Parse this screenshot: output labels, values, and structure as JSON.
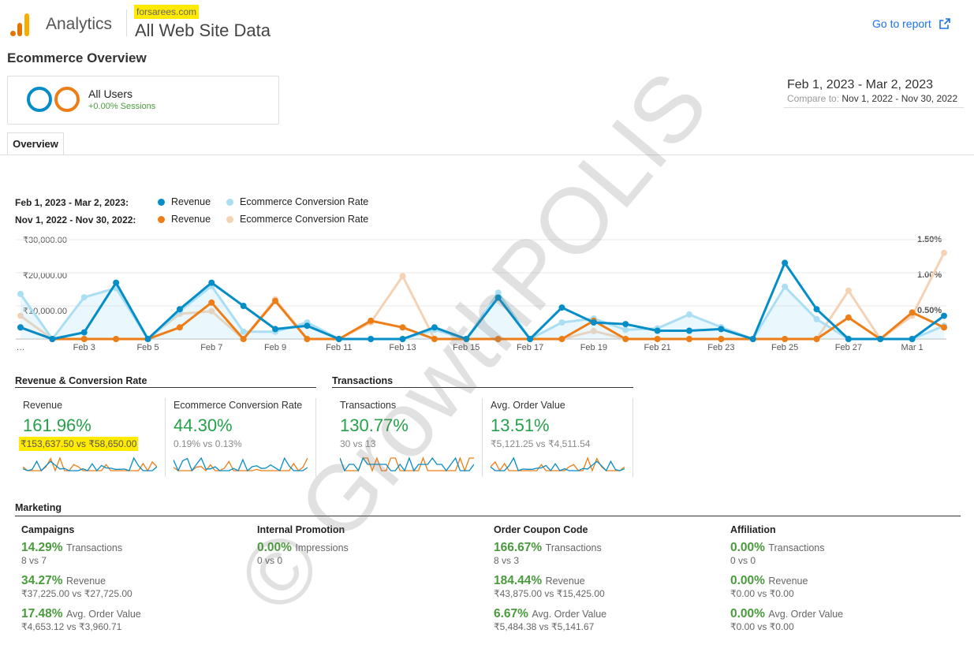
{
  "header": {
    "app_name": "Analytics",
    "account": "forsarees.com",
    "property": "All Web Site Data",
    "goto_report": "Go to report"
  },
  "page_title": "Ecommerce Overview",
  "segment": {
    "name": "All Users",
    "sub": "+0.00% Sessions"
  },
  "date_range": {
    "primary": "Feb 1, 2023 - Mar 2, 2023",
    "compare_label": "Compare to:",
    "compare_range": "Nov 1, 2022 - Nov 30, 2022"
  },
  "tabs": [
    {
      "label": "Overview"
    }
  ],
  "legend": {
    "primary_range": "Feb 1, 2023 - Mar 2, 2023:",
    "compare_range": "Nov 1, 2022 - Nov 30, 2022:",
    "revenue": "Revenue",
    "conversion": "Ecommerce Conversion Rate"
  },
  "colors": {
    "revenue_primary": "#058dc7",
    "conversion_primary": "#aadff3",
    "revenue_compare": "#ed7e17",
    "conversion_compare": "#f6d2b4",
    "positive_green": "#24a149"
  },
  "chart_data": {
    "type": "line",
    "x": [
      "…",
      "Feb 2",
      "Feb 3",
      "Feb 4",
      "Feb 5",
      "Feb 6",
      "Feb 7",
      "Feb 8",
      "Feb 9",
      "Feb 10",
      "Feb 11",
      "Feb 12",
      "Feb 13",
      "Feb 14",
      "Feb 15",
      "Feb 16",
      "Feb 17",
      "Feb 18",
      "Feb 19",
      "Feb 20",
      "Feb 21",
      "Feb 22",
      "Feb 23",
      "Feb 24",
      "Feb 25",
      "Feb 26",
      "Feb 27",
      "Feb 28",
      "Mar 1",
      "Mar 2"
    ],
    "x_tick_labels": [
      "Feb 3",
      "Feb 5",
      "Feb 7",
      "Feb 9",
      "Feb 11",
      "Feb 13",
      "Feb 15",
      "Feb 17",
      "Feb 19",
      "Feb 21",
      "Feb 23",
      "Feb 25",
      "Feb 27",
      "Mar 1"
    ],
    "first_label": "…",
    "left_axis": {
      "ticks": [
        "₹30,000.00",
        "₹20,000.00",
        "₹10,000.00"
      ],
      "ylim": [
        0,
        30000
      ]
    },
    "right_axis": {
      "ticks": [
        "1.50%",
        "1.00%",
        "0.50%"
      ],
      "ylim": [
        0,
        1.5
      ]
    },
    "series": [
      {
        "name": "Revenue",
        "period": "Feb 1, 2023 - Mar 2, 2023",
        "axis": "left",
        "color": "#058dc7",
        "values": [
          3500,
          0,
          2000,
          17000,
          0,
          9000,
          17000,
          10000,
          3000,
          4000,
          0,
          0,
          0,
          3500,
          0,
          12500,
          0,
          9500,
          5000,
          4500,
          2500,
          2500,
          3000,
          0,
          23000,
          9000,
          0,
          0,
          0,
          7000
        ]
      },
      {
        "name": "Ecommerce Conversion Rate",
        "period": "Feb 1, 2023 - Mar 2, 2023",
        "axis": "right",
        "color": "#aadff3",
        "values": [
          0.68,
          0,
          0.63,
          0.77,
          0,
          0.42,
          0.8,
          0.11,
          0.11,
          0.25,
          0,
          0,
          0,
          0.14,
          0,
          0.7,
          0,
          0.25,
          0.31,
          0.14,
          0.16,
          0.37,
          0.18,
          0,
          0.79,
          0.3,
          0,
          0,
          0,
          0.2
        ]
      },
      {
        "name": "Revenue",
        "period": "Nov 1, 2022 - Nov 30, 2022",
        "axis": "left",
        "color": "#ed7e17",
        "values": [
          3500,
          0,
          0,
          0,
          0,
          3500,
          11000,
          0,
          11500,
          0,
          0,
          5500,
          3500,
          0,
          0,
          0,
          0,
          0,
          5500,
          0,
          0,
          0,
          0,
          0,
          0,
          0,
          6500,
          0,
          8000,
          3500
        ]
      },
      {
        "name": "Ecommerce Conversion Rate",
        "period": "Nov 1, 2022 - Nov 30, 2022",
        "axis": "right",
        "color": "#f6d2b4",
        "values": [
          0.35,
          0,
          0,
          0,
          0,
          0.38,
          0.42,
          0,
          0.6,
          0,
          0,
          0.25,
          0.95,
          0,
          0,
          0,
          0,
          0,
          0.12,
          0,
          0,
          0,
          0,
          0,
          0,
          0,
          0.73,
          0,
          0.35,
          1.3
        ]
      }
    ]
  },
  "revenue_section": {
    "title": "Revenue & Conversion Rate",
    "metrics": [
      {
        "label": "Revenue",
        "pct": "161.96%",
        "cmp": "₹153,637.50 vs ₹58,650.00",
        "highlight": true
      },
      {
        "label": "Ecommerce Conversion Rate",
        "pct": "44.30%",
        "cmp": "0.19% vs 0.13%"
      }
    ]
  },
  "transactions_section": {
    "title": "Transactions",
    "metrics": [
      {
        "label": "Transactions",
        "pct": "130.77%",
        "cmp": "30 vs 13"
      },
      {
        "label": "Avg. Order Value",
        "pct": "13.51%",
        "cmp": "₹5,121.25 vs ₹4,511.54"
      }
    ]
  },
  "marketing": {
    "title": "Marketing",
    "columns": [
      {
        "head": "Campaigns",
        "items": [
          {
            "pct": "14.29%",
            "label": "Transactions",
            "cmp": "8 vs 7"
          },
          {
            "pct": "34.27%",
            "label": "Revenue",
            "cmp": "₹37,225.00 vs ₹27,725.00"
          },
          {
            "pct": "17.48%",
            "label": "Avg. Order Value",
            "cmp": "₹4,653.12 vs ₹3,960.71"
          }
        ]
      },
      {
        "head": "Internal Promotion",
        "items": [
          {
            "pct": "0.00%",
            "label": "Impressions",
            "cmp": "0 vs 0"
          }
        ]
      },
      {
        "head": "Order Coupon Code",
        "items": [
          {
            "pct": "166.67%",
            "label": "Transactions",
            "cmp": "8 vs 3"
          },
          {
            "pct": "184.44%",
            "label": "Revenue",
            "cmp": "₹43,875.00 vs ₹15,425.00"
          },
          {
            "pct": "6.67%",
            "label": "Avg. Order Value",
            "cmp": "₹5,484.38 vs ₹5,141.67"
          }
        ]
      },
      {
        "head": "Affiliation",
        "items": [
          {
            "pct": "0.00%",
            "label": "Transactions",
            "cmp": "0 vs 0"
          },
          {
            "pct": "0.00%",
            "label": "Revenue",
            "cmp": "₹0.00 vs ₹0.00"
          },
          {
            "pct": "0.00%",
            "label": "Avg. Order Value",
            "cmp": "₹0.00 vs ₹0.00"
          }
        ]
      }
    ]
  },
  "watermark": "© GrowthPOLIS"
}
